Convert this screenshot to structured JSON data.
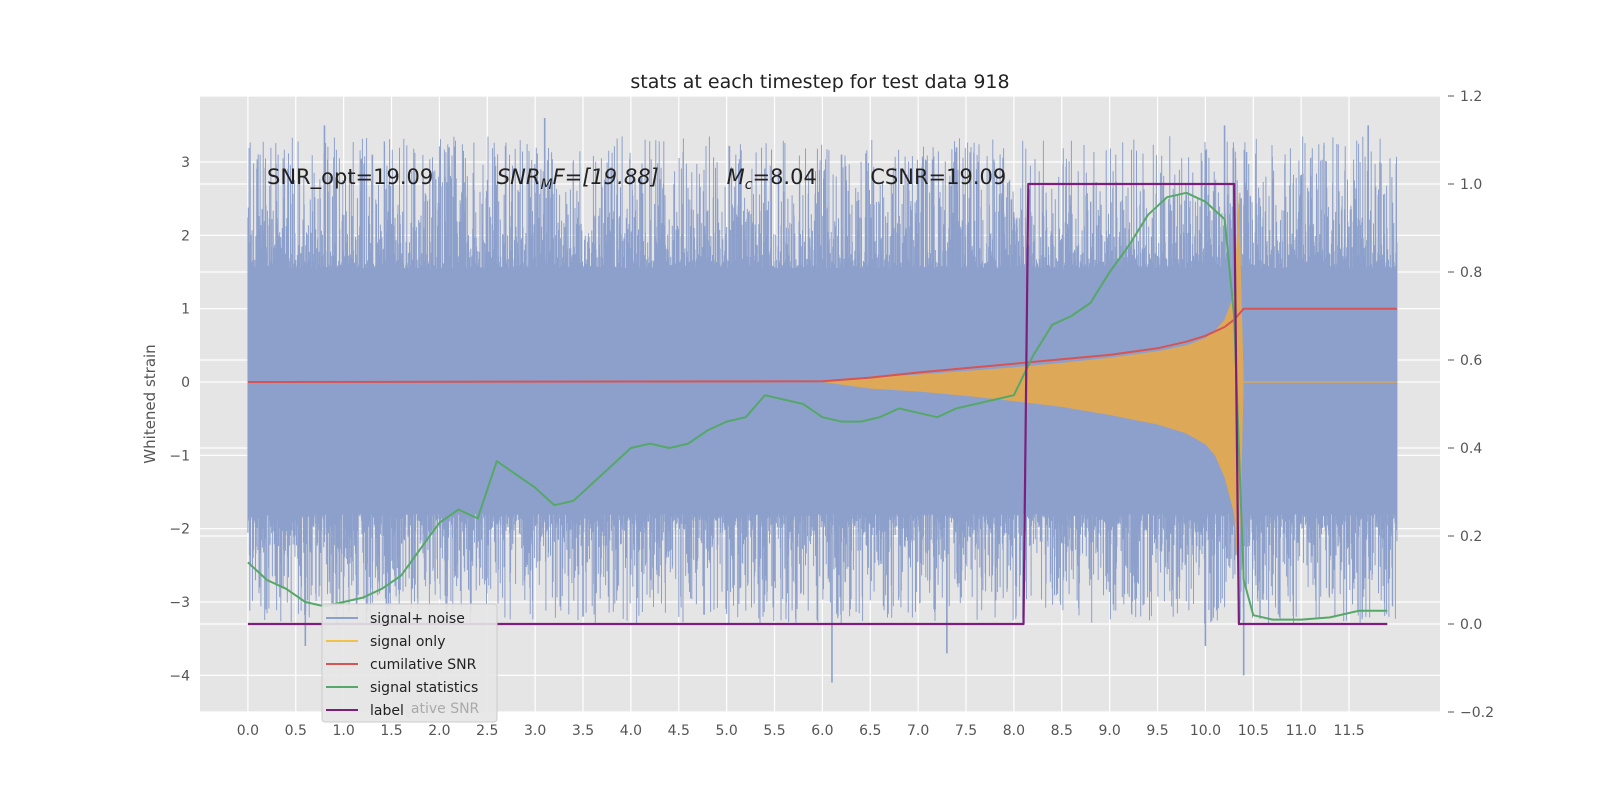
{
  "chart_data": {
    "type": "line",
    "title": "stats at each timestep for test data 918",
    "ylabel": "Whitened strain",
    "xlabel": "",
    "xlim": [
      -0.5,
      12.45
    ],
    "ylim": [
      -4.5,
      3.9
    ],
    "y2lim": [
      -0.2,
      1.2
    ],
    "grid": true,
    "x_ticks": [
      "0.0",
      "0.5",
      "1.0",
      "1.5",
      "2.0",
      "2.5",
      "3.0",
      "3.5",
      "4.0",
      "4.5",
      "5.0",
      "5.5",
      "6.0",
      "6.5",
      "7.0",
      "7.5",
      "8.0",
      "8.5",
      "9.0",
      "9.5",
      "10.0",
      "10.5",
      "11.0",
      "11.5"
    ],
    "y_ticks": [
      "3",
      "2",
      "1",
      "0",
      "−1",
      "−2",
      "−3",
      "−4"
    ],
    "y2_ticks": [
      "1.2",
      "1.0",
      "0.8",
      "0.6",
      "0.4",
      "0.2",
      "0.0",
      "−0.2"
    ],
    "annotations": [
      {
        "label": "SNR_opt=19.09",
        "x": 0.2,
        "y": 2.7
      },
      {
        "base": "SNR",
        "sub": "M",
        "rest": "F=[19.88]",
        "x": 2.6,
        "y": 2.7
      },
      {
        "base": "M",
        "sub": "c",
        "rest": "=8.04",
        "x": 5.0,
        "y": 2.7
      },
      {
        "label": "CSNR=19.09",
        "x": 6.5,
        "y": 2.7
      }
    ],
    "legend": {
      "position": "lower-left",
      "entries": [
        "signal+ noise",
        "signal only",
        "cumilative SNR",
        "signal statistics",
        "label"
      ],
      "hidden_text": "lative SNR"
    },
    "series": [
      {
        "name": "signal+ noise",
        "axis": "left",
        "color": "#8da0cb",
        "style": "noise-band",
        "x_range": [
          0.0,
          12.0
        ],
        "band_upper": 1.55,
        "band_lower": -1.8,
        "peaks": [
          {
            "x": 0.8,
            "y": 3.5
          },
          {
            "x": 1.3,
            "y": 3.1
          },
          {
            "x": 2.1,
            "y": 3.2
          },
          {
            "x": 3.1,
            "y": 3.6
          },
          {
            "x": 6.2,
            "y": 3.1
          },
          {
            "x": 7.4,
            "y": 3.2
          },
          {
            "x": 10.2,
            "y": 3.5
          },
          {
            "x": 11.7,
            "y": 3.5
          },
          {
            "x": 0.6,
            "y": -3.6
          },
          {
            "x": 3.5,
            "y": -3.2
          },
          {
            "x": 6.1,
            "y": -4.1
          },
          {
            "x": 7.3,
            "y": -3.7
          },
          {
            "x": 10.0,
            "y": -3.6
          },
          {
            "x": 10.4,
            "y": -4.0
          }
        ]
      },
      {
        "name": "signal only",
        "axis": "left",
        "color": "#e5a84b",
        "style": "envelope",
        "x": [
          6.0,
          6.5,
          7.0,
          7.5,
          8.0,
          8.5,
          9.0,
          9.5,
          9.8,
          10.0,
          10.1,
          10.2,
          10.3,
          10.35,
          10.4,
          12.0
        ],
        "upper": [
          0.0,
          0.07,
          0.1,
          0.15,
          0.2,
          0.26,
          0.33,
          0.42,
          0.5,
          0.6,
          0.7,
          0.85,
          1.2,
          2.6,
          0.0,
          0.0
        ],
        "lower": [
          0.0,
          -0.09,
          -0.13,
          -0.19,
          -0.26,
          -0.34,
          -0.45,
          -0.58,
          -0.7,
          -0.85,
          -1.0,
          -1.3,
          -1.8,
          -2.8,
          0.0,
          0.0
        ]
      },
      {
        "name": "cumilative SNR",
        "axis": "left",
        "color": "#d65454",
        "x": [
          0.0,
          6.0,
          6.5,
          7.0,
          7.5,
          8.0,
          8.5,
          9.0,
          9.5,
          9.8,
          10.0,
          10.2,
          10.3,
          10.4,
          12.0
        ],
        "y": [
          0.0,
          0.01,
          0.06,
          0.13,
          0.19,
          0.25,
          0.31,
          0.37,
          0.46,
          0.55,
          0.63,
          0.75,
          0.85,
          1.0,
          1.0
        ]
      },
      {
        "name": "signal statistics",
        "axis": "right",
        "color": "#55a868",
        "x": [
          0.0,
          0.2,
          0.4,
          0.6,
          0.8,
          1.0,
          1.2,
          1.4,
          1.6,
          1.8,
          2.0,
          2.2,
          2.4,
          2.6,
          2.8,
          3.0,
          3.2,
          3.4,
          3.6,
          3.8,
          4.0,
          4.2,
          4.4,
          4.6,
          4.8,
          5.0,
          5.2,
          5.4,
          5.6,
          5.8,
          6.0,
          6.2,
          6.4,
          6.6,
          6.8,
          7.0,
          7.2,
          7.4,
          7.6,
          7.8,
          8.0,
          8.2,
          8.4,
          8.6,
          8.8,
          9.0,
          9.2,
          9.4,
          9.6,
          9.8,
          10.0,
          10.2,
          10.3,
          10.4,
          10.5,
          10.7,
          11.0,
          11.3,
          11.6,
          11.9
        ],
        "y": [
          0.14,
          0.1,
          0.08,
          0.05,
          0.04,
          0.05,
          0.06,
          0.08,
          0.11,
          0.17,
          0.23,
          0.26,
          0.24,
          0.37,
          0.34,
          0.31,
          0.27,
          0.28,
          0.32,
          0.36,
          0.4,
          0.41,
          0.4,
          0.41,
          0.44,
          0.46,
          0.47,
          0.52,
          0.51,
          0.5,
          0.47,
          0.46,
          0.46,
          0.47,
          0.49,
          0.48,
          0.47,
          0.49,
          0.5,
          0.51,
          0.52,
          0.61,
          0.68,
          0.7,
          0.73,
          0.8,
          0.86,
          0.93,
          0.97,
          0.98,
          0.96,
          0.92,
          0.7,
          0.1,
          0.02,
          0.01,
          0.01,
          0.015,
          0.03,
          0.03
        ]
      },
      {
        "name": "label",
        "axis": "right",
        "color": "#7b1f7b",
        "x": [
          0.0,
          8.1,
          8.15,
          10.3,
          10.35,
          11.9
        ],
        "y": [
          0.0,
          0.0,
          1.0,
          1.0,
          0.0,
          0.0
        ]
      }
    ]
  }
}
